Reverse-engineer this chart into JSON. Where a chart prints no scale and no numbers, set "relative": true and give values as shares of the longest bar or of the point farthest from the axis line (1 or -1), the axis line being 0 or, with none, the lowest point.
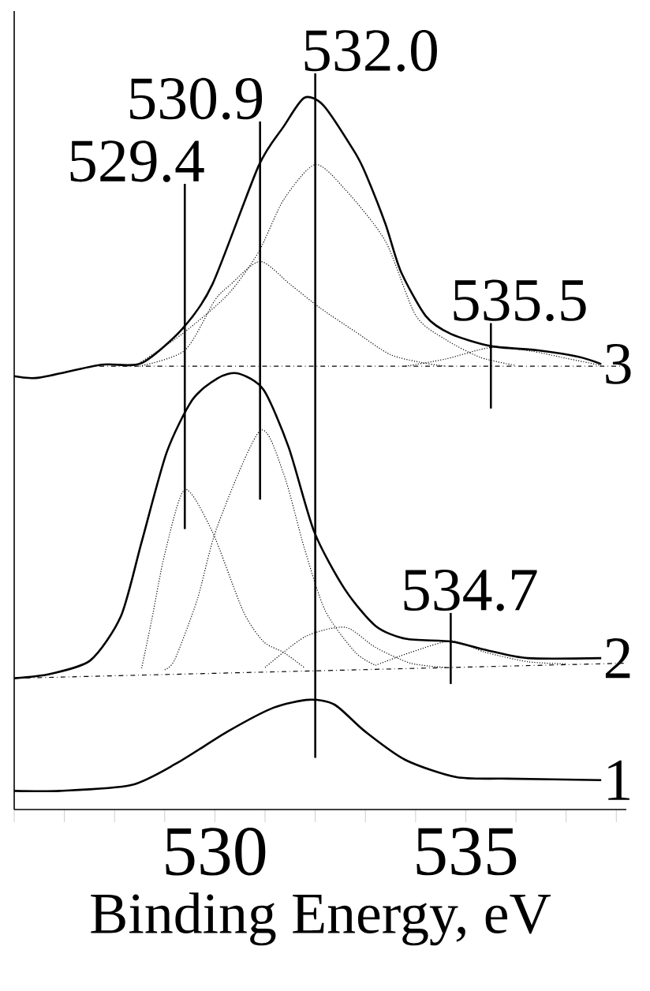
{
  "chart_data": {
    "type": "line",
    "xlabel": "Binding Energy, eV",
    "relative": true,
    "xlim": [
      526,
      538.2
    ],
    "xticks": [
      {
        "value": 526,
        "label": null
      },
      {
        "value": 527,
        "label": null
      },
      {
        "value": 528,
        "label": null
      },
      {
        "value": 529,
        "label": null
      },
      530,
      {
        "value": 531,
        "label": null
      },
      {
        "value": 532,
        "label": null
      },
      {
        "value": 533,
        "label": null
      },
      {
        "value": 534,
        "label": null
      },
      535,
      {
        "value": 536,
        "label": null
      },
      {
        "value": 537,
        "label": null
      },
      {
        "value": 538,
        "label": null
      }
    ],
    "tick_labels": "x",
    "grid": false,
    "marker": "none",
    "series": [
      {
        "name": "3",
        "color": "#000000",
        "line_style": "solid",
        "x": [
          526.0,
          526.5,
          527.73,
          528.53,
          529.35,
          529.95,
          530.87,
          531.37,
          531.78,
          532.17,
          532.79,
          533.0,
          533.4,
          533.7,
          534.2,
          534.7,
          535.5,
          536.44,
          537.25,
          537.7
        ],
        "values": [
          0.578,
          0.576,
          0.594,
          0.596,
          0.644,
          0.706,
          0.871,
          0.926,
          0.966,
          0.955,
          0.89,
          0.861,
          0.79,
          0.725,
          0.662,
          0.637,
          0.62,
          0.614,
          0.605,
          0.595
        ]
      },
      {
        "color": "#000000",
        "line_style": "dotted",
        "x": [
          528.4,
          529.35,
          530.26,
          530.87,
          531.37,
          532.0,
          532.6,
          533.4,
          534.0,
          534.6,
          535.3,
          536.0
        ],
        "values": [
          0.592,
          0.637,
          0.692,
          0.751,
          0.824,
          0.873,
          0.838,
          0.766,
          0.663,
          0.629,
          0.604,
          0.593
        ]
      },
      {
        "color": "#000000",
        "line_style": "dotted",
        "x": [
          528.5,
          529.4,
          530.0,
          530.3,
          530.9,
          531.5,
          532.1,
          532.8,
          533.5,
          534.2,
          534.6
        ],
        "values": [
          0.592,
          0.614,
          0.684,
          0.705,
          0.738,
          0.706,
          0.673,
          0.64,
          0.608,
          0.596,
          0.592
        ]
      },
      {
        "color": "#000000",
        "line_style": "dotted",
        "x": [
          533.8,
          534.6,
          535.5,
          536.3,
          537.0,
          537.7
        ],
        "values": [
          0.592,
          0.602,
          0.618,
          0.613,
          0.603,
          0.593
        ]
      },
      {
        "color": "#000000",
        "line_style": "dashed",
        "x": [
          527.7,
          538.2
        ],
        "values": [
          0.592,
          0.592
        ]
      },
      {
        "name": "2",
        "color": "#000000",
        "line_style": "solid",
        "x": [
          526.0,
          526.71,
          527.52,
          528.13,
          528.54,
          529.04,
          529.55,
          530.05,
          530.46,
          530.97,
          531.47,
          531.98,
          532.59,
          533.2,
          533.8,
          534.72,
          535.43,
          536.24,
          537.7
        ],
        "values": [
          0.157,
          0.163,
          0.182,
          0.244,
          0.347,
          0.472,
          0.545,
          0.575,
          0.582,
          0.559,
          0.479,
          0.361,
          0.281,
          0.23,
          0.212,
          0.208,
          0.196,
          0.185,
          0.185
        ]
      },
      {
        "color": "#000000",
        "line_style": "dotted",
        "x": [
          528.54,
          528.74,
          529.0,
          529.4,
          529.95,
          530.56,
          530.97,
          531.37,
          531.78
        ],
        "values": [
          0.171,
          0.238,
          0.33,
          0.42,
          0.361,
          0.251,
          0.208,
          0.193,
          0.172
        ]
      },
      {
        "color": "#000000",
        "line_style": "dotted",
        "x": [
          529.0,
          529.2,
          529.65,
          530.05,
          530.9,
          531.37,
          531.78,
          532.2,
          532.8,
          533.2
        ],
        "values": [
          0.169,
          0.183,
          0.267,
          0.369,
          0.502,
          0.442,
          0.339,
          0.251,
          0.193,
          0.175
        ]
      },
      {
        "color": "#000000",
        "line_style": "dotted",
        "x": [
          531.0,
          531.8,
          532.6,
          533.2,
          533.9,
          534.6
        ],
        "values": [
          0.172,
          0.215,
          0.228,
          0.2,
          0.178,
          0.172
        ]
      },
      {
        "color": "#000000",
        "line_style": "dotted",
        "x": [
          533.2,
          533.9,
          534.72,
          535.4,
          536.24,
          537.0
        ],
        "values": [
          0.175,
          0.193,
          0.209,
          0.193,
          0.18,
          0.177
        ]
      },
      {
        "color": "#000000",
        "line_style": "dashed",
        "x": [
          526.0,
          538.2
        ],
        "values": [
          0.157,
          0.178
        ]
      },
      {
        "name": "1",
        "color": "#000000",
        "line_style": "solid",
        "x": [
          526.0,
          526.91,
          528.33,
          529.25,
          530.26,
          531.17,
          531.88,
          532.39,
          532.99,
          533.8,
          534.82,
          535.83,
          537.7
        ],
        "values": [
          0.0,
          0.0,
          0.008,
          0.039,
          0.083,
          0.116,
          0.127,
          0.12,
          0.083,
          0.043,
          0.019,
          0.017,
          0.015
        ]
      },
      {
        "color": "#000000",
        "line_style": "solid",
        "x": [
          529.4,
          529.4
        ],
        "values": [
          0.365,
          0.846
        ]
      },
      {
        "color": "#000000",
        "line_style": "solid",
        "x": [
          530.9,
          530.9
        ],
        "values": [
          0.406,
          0.933
        ]
      },
      {
        "color": "#000000",
        "line_style": "solid",
        "x": [
          532.0,
          532.0
        ],
        "values": [
          0.046,
          1.0
        ]
      },
      {
        "color": "#000000",
        "line_style": "solid",
        "x": [
          535.5,
          535.5
        ],
        "values": [
          0.533,
          0.652
        ]
      },
      {
        "color": "#000000",
        "line_style": "solid",
        "x": [
          534.7,
          534.7
        ],
        "values": [
          0.149,
          0.248
        ]
      }
    ],
    "annotations": [
      {
        "text": "529.4",
        "x": 529.4,
        "y": 0.846
      },
      {
        "text": "530.9",
        "x": 530.9,
        "y": 0.933
      },
      {
        "text": "532.0",
        "x": 532.0,
        "y": 1.0
      },
      {
        "text": "535.5",
        "x": 535.5,
        "y": 0.652
      },
      {
        "text": "534.7",
        "x": 534.7,
        "y": 0.248
      }
    ]
  }
}
